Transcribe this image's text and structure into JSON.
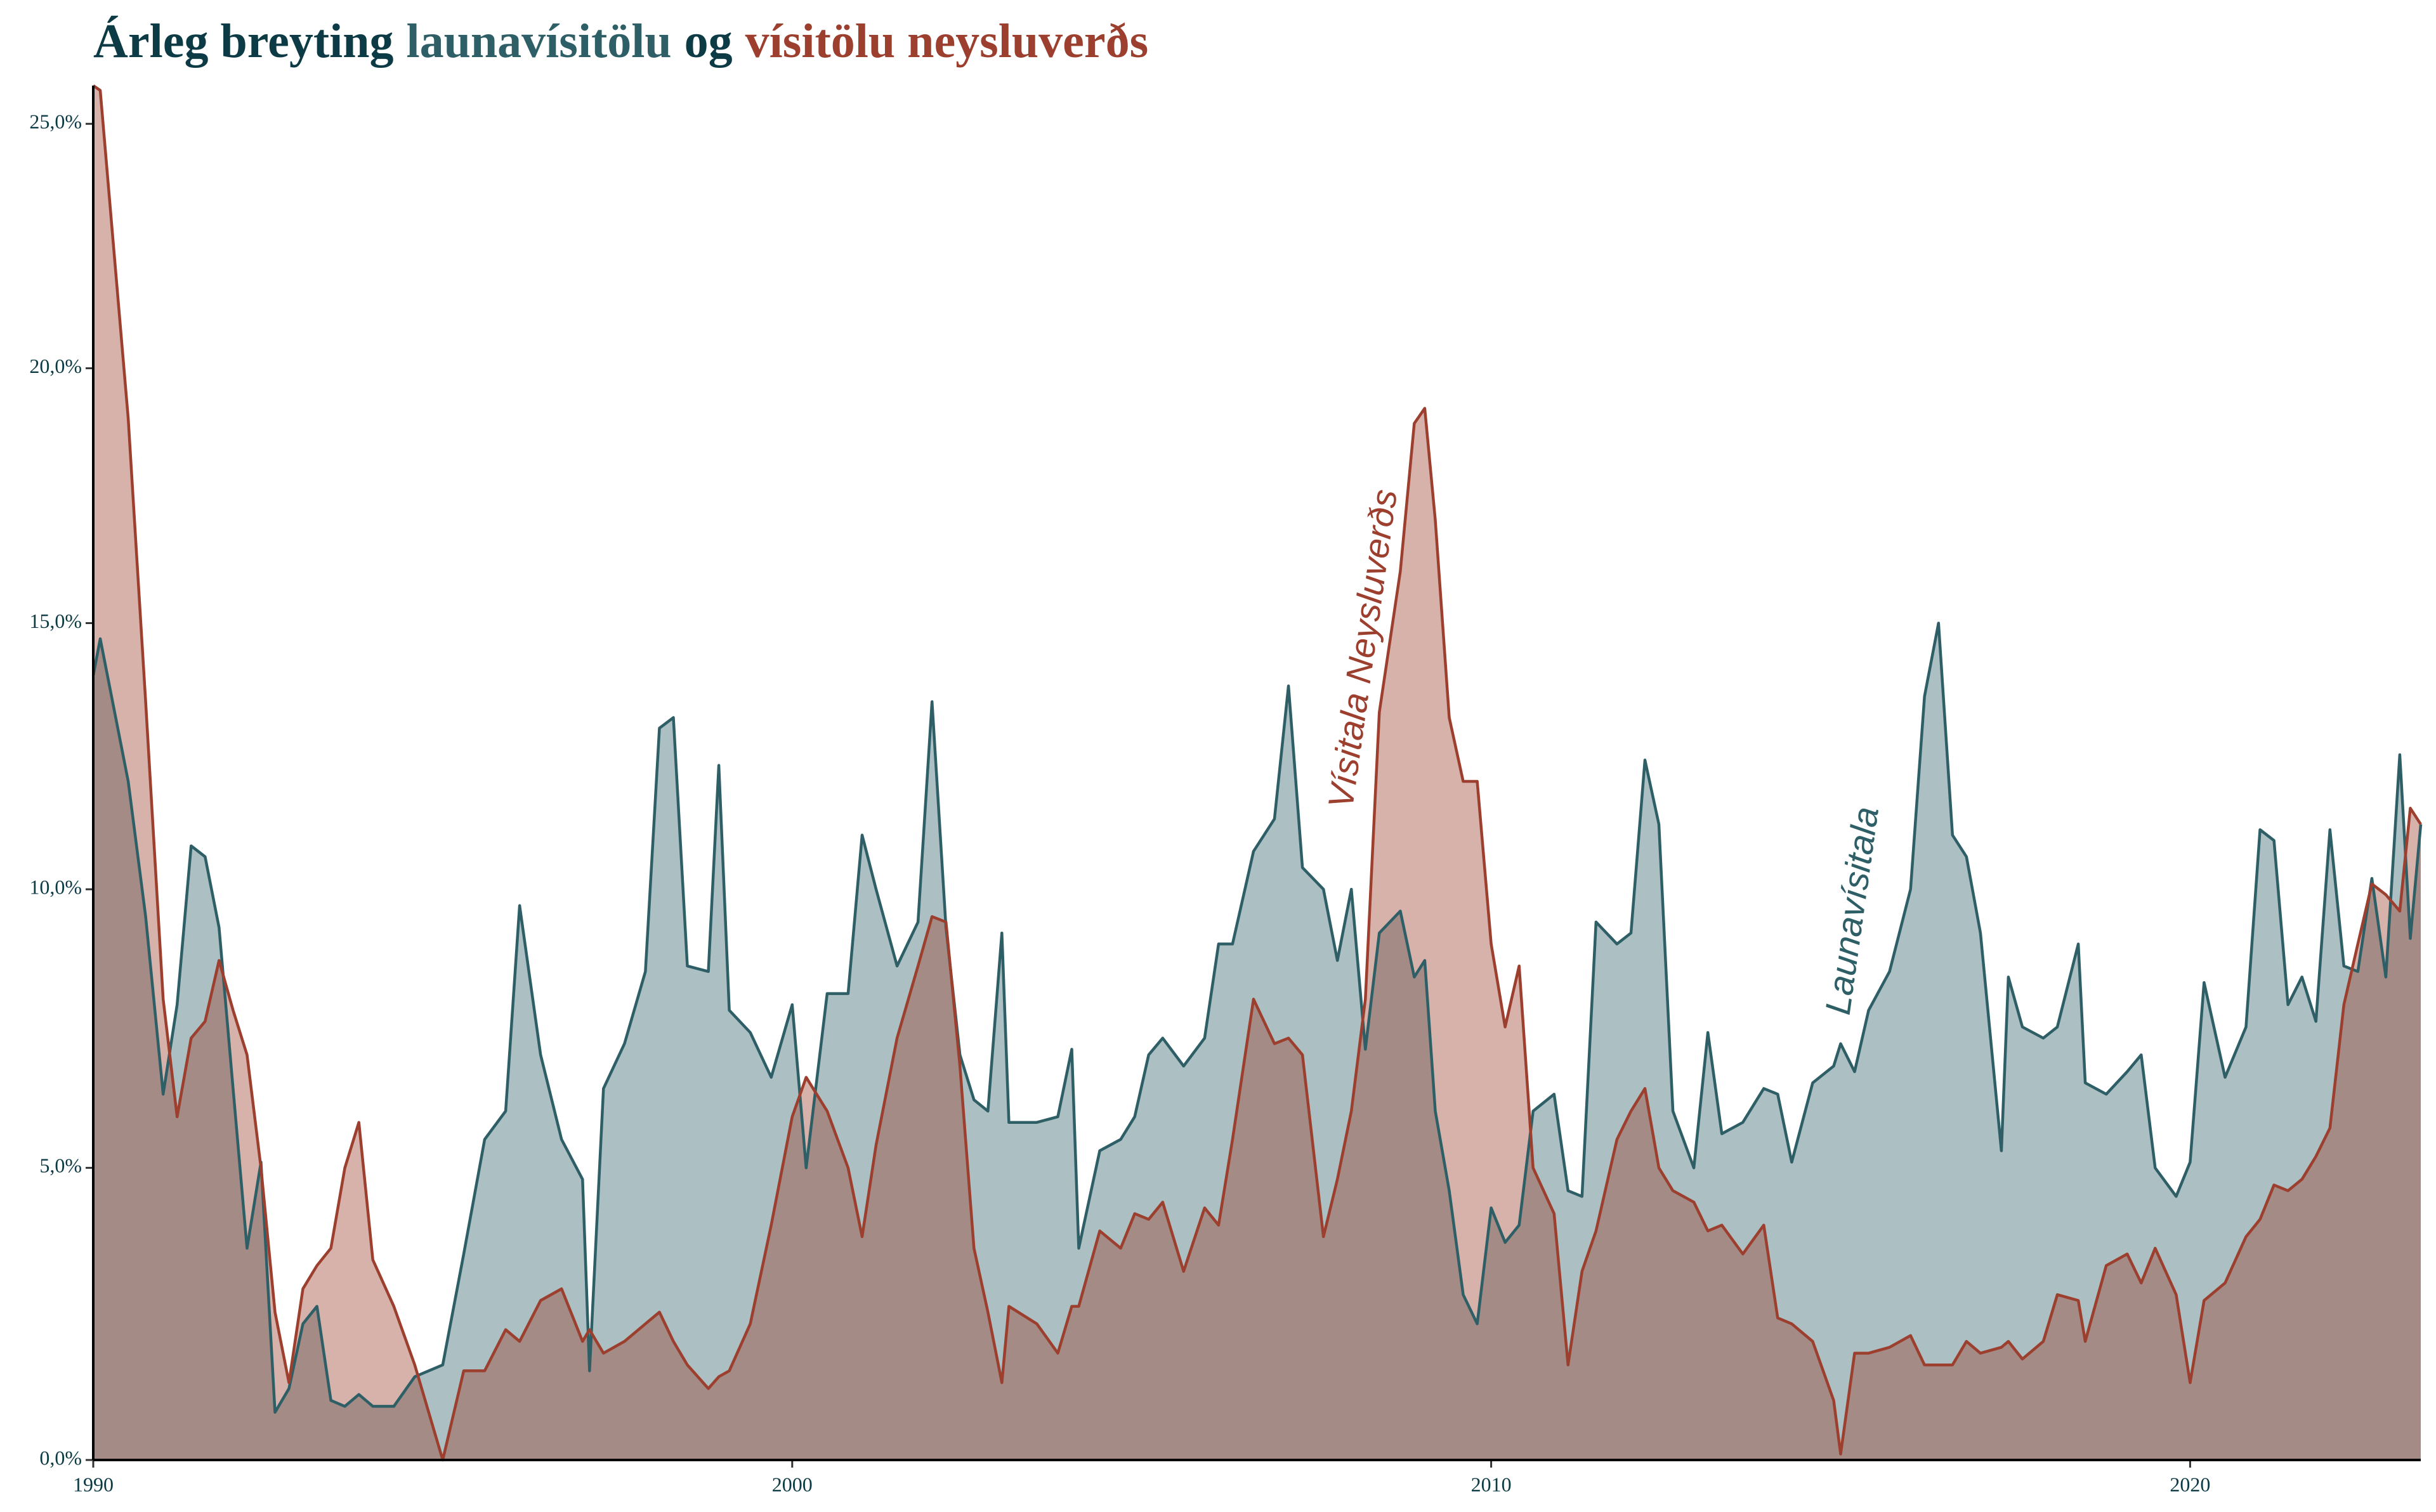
{
  "chart_data": {
    "type": "area",
    "title_parts": [
      {
        "text": "Árleg breyting",
        "color": "#0d3b45"
      },
      {
        "text": "launavísitölu",
        "color": "#2f5f66"
      },
      {
        "text": "og",
        "color": "#0d3b45"
      },
      {
        "text": "vísitölu neysluverðs",
        "color": "#9c3f2e"
      }
    ],
    "yscale": "log1p",
    "xlim": [
      1990,
      2023.3
    ],
    "xticks": [
      1990,
      2000,
      2010,
      2020
    ],
    "ylim": [
      0,
      25.8
    ],
    "yticks": [
      {
        "value": 0,
        "label": "0,0%"
      },
      {
        "value": 5,
        "label": "5,0%"
      },
      {
        "value": 10,
        "label": "10,0%"
      },
      {
        "value": 15,
        "label": "15,0%"
      },
      {
        "value": 20,
        "label": "20,0%"
      },
      {
        "value": 25,
        "label": "25,0%"
      }
    ],
    "x": [
      1990.0,
      1990.1,
      1990.5,
      1990.75,
      1991.0,
      1991.2,
      1991.4,
      1991.6,
      1991.8,
      1992.0,
      1992.2,
      1992.4,
      1992.6,
      1992.8,
      1993.0,
      1993.2,
      1993.4,
      1993.6,
      1993.8,
      1994.0,
      1994.3,
      1994.6,
      1995.0,
      1995.3,
      1995.6,
      1995.9,
      1996.1,
      1996.4,
      1996.7,
      1997.0,
      1997.1,
      1997.3,
      1997.6,
      1997.9,
      1998.1,
      1998.3,
      1998.5,
      1998.8,
      1998.95,
      1999.1,
      1999.4,
      1999.7,
      2000.0,
      2000.2,
      2000.5,
      2000.8,
      2001.0,
      2001.2,
      2001.5,
      2001.8,
      2002.0,
      2002.2,
      2002.4,
      2002.6,
      2002.8,
      2003.0,
      2003.1,
      2003.5,
      2003.8,
      2004.0,
      2004.1,
      2004.4,
      2004.7,
      2004.9,
      2005.1,
      2005.3,
      2005.6,
      2005.9,
      2006.1,
      2006.3,
      2006.6,
      2006.9,
      2007.1,
      2007.3,
      2007.6,
      2007.8,
      2008.0,
      2008.2,
      2008.4,
      2008.7,
      2008.9,
      2009.05,
      2009.2,
      2009.4,
      2009.6,
      2009.8,
      2010.0,
      2010.2,
      2010.4,
      2010.6,
      2010.9,
      2011.1,
      2011.3,
      2011.5,
      2011.8,
      2012.0,
      2012.2,
      2012.4,
      2012.6,
      2012.9,
      2013.1,
      2013.3,
      2013.6,
      2013.9,
      2014.1,
      2014.3,
      2014.6,
      2014.9,
      2015.0,
      2015.2,
      2015.4,
      2015.7,
      2016.0,
      2016.2,
      2016.4,
      2016.6,
      2016.8,
      2017.0,
      2017.3,
      2017.4,
      2017.6,
      2017.9,
      2018.1,
      2018.4,
      2018.5,
      2018.8,
      2019.1,
      2019.3,
      2019.5,
      2019.8,
      2020.0,
      2020.2,
      2020.5,
      2020.8,
      2021.0,
      2021.2,
      2021.4,
      2021.6,
      2021.8,
      2022.0,
      2022.2,
      2022.4,
      2022.6,
      2022.8,
      2023.0,
      2023.15,
      2023.3
    ],
    "series": [
      {
        "name": "Launavísitala",
        "color": "#2f5f66",
        "values": [
          14.0,
          14.7,
          12,
          9.5,
          6.3,
          7.9,
          10.8,
          10.6,
          9.3,
          6.4,
          3.6,
          5.1,
          0.8,
          1.2,
          2.3,
          2.6,
          1.0,
          0.9,
          1.1,
          0.9,
          0.9,
          1.4,
          1.6,
          3.5,
          5.5,
          6.0,
          9.7,
          7.0,
          5.5,
          4.8,
          1.5,
          6.4,
          7.2,
          8.5,
          13.0,
          13.2,
          8.6,
          8.5,
          12.3,
          7.8,
          7.4,
          6.6,
          7.9,
          5.0,
          8.1,
          8.1,
          11.0,
          10.0,
          8.6,
          9.4,
          13.5,
          9.3,
          7.0,
          6.2,
          6.0,
          9.2,
          5.8,
          5.8,
          5.9,
          7.1,
          3.6,
          5.3,
          5.5,
          5.9,
          7.0,
          7.3,
          6.8,
          7.3,
          9.0,
          9.0,
          10.7,
          11.3,
          13.8,
          10.4,
          10.0,
          8.7,
          10.0,
          7.1,
          9.2,
          9.6,
          8.4,
          8.7,
          6.0,
          4.6,
          2.8,
          2.3,
          4.3,
          3.7,
          4.0,
          6.0,
          6.3,
          4.6,
          4.5,
          9.4,
          9.0,
          9.2,
          12.4,
          11.2,
          6.0,
          5.0,
          7.4,
          5.6,
          5.8,
          6.4,
          6.3,
          5.1,
          6.5,
          6.8,
          7.2,
          6.7,
          7.8,
          8.5,
          10.0,
          13.6,
          15.0,
          11.0,
          10.6,
          9.2,
          5.3,
          8.4,
          7.5,
          7.3,
          7.5,
          9.0,
          6.5,
          6.3,
          6.7,
          7.0,
          5.0,
          4.5,
          5.1,
          8.3,
          6.6,
          7.5,
          11.1,
          10.9,
          7.9,
          8.4,
          7.6,
          11.1,
          8.6,
          8.5,
          10.2,
          8.4,
          12.5,
          9.1,
          11.2
        ]
      },
      {
        "name": "Vísitala Neysluverðs",
        "color": "#9c3f2e",
        "values": [
          25.8,
          25.7,
          19,
          13.5,
          8,
          5.9,
          7.3,
          7.6,
          8.7,
          7.8,
          7.0,
          5,
          2.5,
          1.3,
          2.9,
          3.3,
          3.6,
          5.0,
          5.8,
          3.4,
          2.6,
          1.6,
          0.0,
          1.5,
          1.5,
          2.2,
          2.0,
          2.7,
          2.9,
          2.0,
          2.2,
          1.8,
          2.0,
          2.3,
          2.5,
          2.0,
          1.6,
          1.2,
          1.4,
          1.5,
          2.3,
          4.0,
          5.9,
          6.6,
          6.0,
          5.0,
          3.8,
          5.4,
          7.3,
          8.6,
          9.5,
          9.4,
          6.8,
          3.6,
          2.5,
          1.3,
          2.6,
          2.3,
          1.8,
          2.6,
          2.6,
          3.9,
          3.6,
          4.2,
          4.1,
          4.4,
          3.2,
          4.3,
          4.0,
          5.5,
          8.0,
          7.2,
          7.3,
          7.0,
          3.8,
          4.8,
          6.0,
          8.0,
          13.3,
          16.0,
          18.9,
          19.2,
          17.0,
          13.2,
          12.0,
          12.0,
          9.0,
          7.5,
          8.6,
          5.0,
          4.2,
          1.6,
          3.2,
          3.9,
          5.5,
          6.0,
          6.4,
          5.0,
          4.6,
          4.4,
          3.9,
          4.0,
          3.5,
          4.0,
          2.4,
          2.3,
          2.0,
          1.0,
          0.1,
          1.8,
          1.8,
          1.9,
          2.1,
          1.6,
          1.6,
          1.6,
          2.0,
          1.8,
          1.9,
          2.0,
          1.7,
          2.0,
          2.8,
          2.7,
          2.0,
          3.3,
          3.5,
          3.0,
          3.6,
          2.8,
          1.3,
          2.7,
          3.0,
          3.8,
          4.1,
          4.7,
          4.6,
          4.8,
          5.2,
          5.7,
          7.9,
          9.0,
          10.1,
          9.9,
          9.6,
          11.5,
          11.2
        ]
      }
    ],
    "annotations": [
      {
        "text": "Vísitala Neysluverðs",
        "x": 2008.2,
        "y": 14.5,
        "color": "#9c3f2e"
      },
      {
        "text": "Launavísitala",
        "x": 2015.2,
        "y": 9.6,
        "color": "#2f5f66"
      }
    ]
  }
}
